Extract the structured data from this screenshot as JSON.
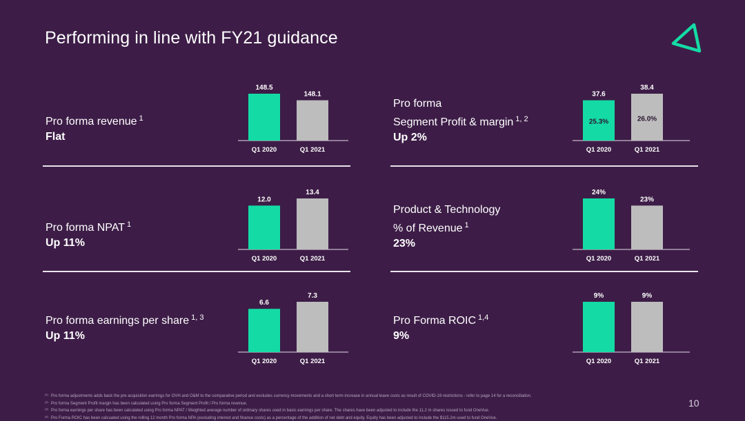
{
  "title": "Performing in line with FY21 guidance",
  "colors": {
    "background": "#3d1d47",
    "accent": "#14dba5",
    "grey": "#bdbdbd"
  },
  "logo": {
    "icon": "tilted-triangle-logo-icon",
    "color": "#14dba5"
  },
  "metrics": [
    {
      "label_line1": "Pro forma revenue",
      "label_line2": "",
      "sup": "1",
      "value": "Flat"
    },
    {
      "label_line1": "Pro forma",
      "label_line2": "Segment Profit & margin",
      "sup": "1, 2",
      "value": "Up 2%"
    },
    {
      "label_line1": "Pro forma NPAT",
      "label_line2": "",
      "sup": "1",
      "value": "Up 11%"
    },
    {
      "label_line1": "Product & Technology",
      "label_line2": "% of Revenue",
      "sup": "1",
      "value": "23%"
    },
    {
      "label_line1": "Pro forma earnings per share",
      "label_line2": "",
      "sup": "1, 3",
      "value": "Up 11%"
    },
    {
      "label_line1": "Pro Forma ROIC",
      "label_line2": "",
      "sup": "1,4",
      "value": "9%"
    }
  ],
  "chart_data": [
    {
      "type": "bar",
      "categories": [
        "Q1 2020",
        "Q1 2021"
      ],
      "values": [
        148.5,
        148.1
      ],
      "labels": [
        "148.5",
        "148.1"
      ],
      "inner_labels": []
    },
    {
      "type": "bar",
      "categories": [
        "Q1 2020",
        "Q1 2021"
      ],
      "values": [
        37.6,
        38.4
      ],
      "labels": [
        "37.6",
        "38.4"
      ],
      "inner_labels": [
        "25.3%",
        "26.0%"
      ]
    },
    {
      "type": "bar",
      "categories": [
        "Q1 2020",
        "Q1 2021"
      ],
      "values": [
        12.0,
        13.4
      ],
      "labels": [
        "12.0",
        "13.4"
      ],
      "inner_labels": []
    },
    {
      "type": "bar",
      "categories": [
        "Q1 2020",
        "Q1 2021"
      ],
      "values": [
        24,
        23
      ],
      "labels": [
        "24%",
        "23%"
      ],
      "inner_labels": []
    },
    {
      "type": "bar",
      "categories": [
        "Q1 2020",
        "Q1 2021"
      ],
      "values": [
        6.6,
        7.3
      ],
      "labels": [
        "6.6",
        "7.3"
      ],
      "inner_labels": []
    },
    {
      "type": "bar",
      "categories": [
        "Q1 2020",
        "Q1 2021"
      ],
      "values": [
        9,
        9
      ],
      "labels": [
        "9%",
        "9%"
      ],
      "inner_labels": []
    }
  ],
  "footnotes": [
    {
      "num": "(1)",
      "text": "Pro forma adjustments adds back the pre acquisition earnings for OVH and O&M to the comparative period and excludes currency movements and a short term increase in annual leave costs as result of COVID-19 restrictions - refer to page 14 for a reconciliation."
    },
    {
      "num": "(2)",
      "text": "Pro forma Segment Profit margin has been calculated using Pro forma Segment Profit / Pro forma revenue."
    },
    {
      "num": "(3)",
      "text": "Pro forma earnings per share has been calculated using Pro forma NPAT / Weighted average number of ordinary shares used in basic earnings per share. The shares have been adjusted to include the 11.2 m shares issued to fund OneVue."
    },
    {
      "num": "(4)",
      "text": "Pro Forma ROIC has been calcuated using the rolling 12 month Pro forma NPA (excluding interest and finance costs) as a percentage of the addition of net debt and equity. Equity has been adjusted to include the $115.2m used to fund OneVue."
    }
  ],
  "page_number": "10"
}
